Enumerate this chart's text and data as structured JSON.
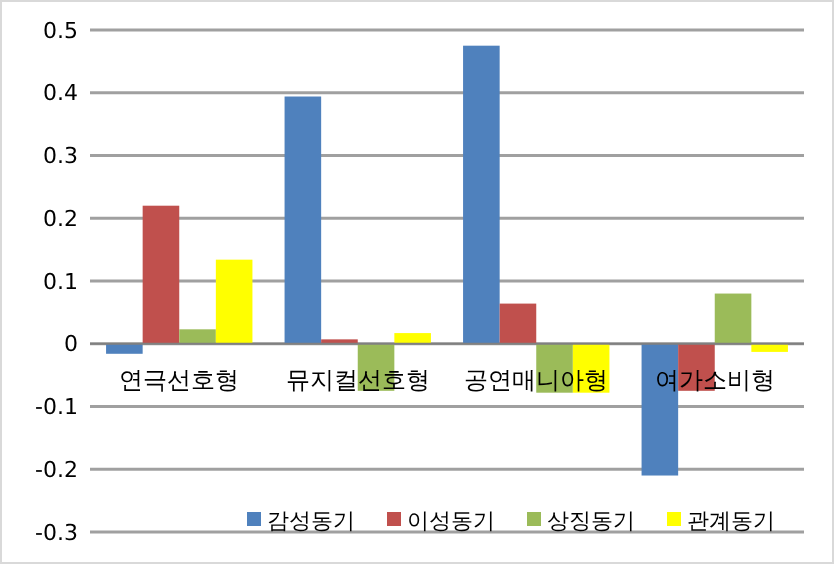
{
  "chart_data": {
    "type": "bar",
    "categories": [
      "연극선호형",
      "뮤지컬선호형",
      "공연매니아형",
      "여가소비형"
    ],
    "series": [
      {
        "name": "감성동기",
        "color": "#4f81bd",
        "values": [
          -0.016,
          0.394,
          0.475,
          -0.21
        ]
      },
      {
        "name": "이성동기",
        "color": "#c0504d",
        "values": [
          0.22,
          0.007,
          0.064,
          -0.075
        ]
      },
      {
        "name": "상징동기",
        "color": "#9bbb59",
        "values": [
          0.023,
          -0.075,
          -0.078,
          0.08
        ]
      },
      {
        "name": "관계동기",
        "color": "#ffff00",
        "values": [
          0.134,
          0.017,
          -0.078,
          -0.013
        ]
      }
    ],
    "ylim": [
      -0.3,
      0.5
    ],
    "yticks": [
      -0.3,
      -0.2,
      -0.1,
      0,
      0.1,
      0.2,
      0.3,
      0.4,
      0.5
    ],
    "grid": "y",
    "legend": "bottom"
  }
}
